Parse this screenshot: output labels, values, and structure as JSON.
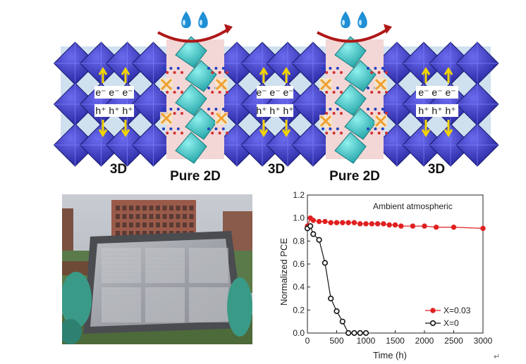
{
  "schematic": {
    "carriers_electrons": "e⁻ e⁻ e⁻",
    "carriers_holes": "h⁺ h⁺ h⁺",
    "region_labels": [
      "3D",
      "Pure 2D",
      "3D",
      "Pure 2D",
      "3D"
    ],
    "colors": {
      "octahedra_3d": "#3434c8",
      "octahedra_2d": "#3fc9c9",
      "band_2d": "#f3d6d6",
      "arrow": "#f2d400",
      "cross": "#f0a030",
      "water_drop": "#1f8fd6",
      "curved_arrow": "#b01818"
    },
    "icons": [
      "water-drop-icon",
      "curved-arrow-icon",
      "blocked-cross-icon",
      "carrier-arrow-icon"
    ]
  },
  "photo": {
    "description_icons": [
      "building",
      "module",
      "gloved-hands"
    ]
  },
  "chart_data": {
    "type": "line",
    "annotation": "Ambient atmospheric",
    "xlabel": "Time (h)",
    "ylabel": "Normalized PCE",
    "xlim": [
      0,
      3000
    ],
    "ylim": [
      0,
      1.2
    ],
    "xticks": [
      0,
      500,
      1000,
      1500,
      2000,
      2500,
      3000
    ],
    "yticks": [
      0.0,
      0.2,
      0.4,
      0.6,
      0.8,
      1.0,
      1.2
    ],
    "ytick_labels": [
      "0.0",
      "0.2",
      "0.4",
      "0.6",
      "0.8",
      "1.0",
      "1.2"
    ],
    "legend_position": "bottom-right",
    "series": [
      {
        "name": "X=0.03",
        "color": "#e02020",
        "x": [
          0,
          50,
          100,
          200,
          300,
          400,
          500,
          600,
          700,
          800,
          900,
          1000,
          1100,
          1200,
          1300,
          1400,
          1500,
          1600,
          1800,
          2000,
          2200,
          2500,
          3000
        ],
        "y": [
          0.93,
          1.0,
          0.98,
          0.97,
          0.97,
          0.96,
          0.96,
          0.96,
          0.96,
          0.96,
          0.95,
          0.95,
          0.95,
          0.95,
          0.95,
          0.94,
          0.94,
          0.93,
          0.93,
          0.93,
          0.92,
          0.92,
          0.91
        ]
      },
      {
        "name": "X=0",
        "color": "#111111",
        "x": [
          0,
          50,
          100,
          200,
          300,
          400,
          500,
          600,
          700,
          800,
          900,
          1000
        ],
        "y": [
          0.91,
          0.93,
          0.86,
          0.81,
          0.61,
          0.3,
          0.19,
          0.1,
          0.0,
          0.0,
          0.0,
          0.0
        ]
      }
    ]
  },
  "footer_mark": "↵"
}
